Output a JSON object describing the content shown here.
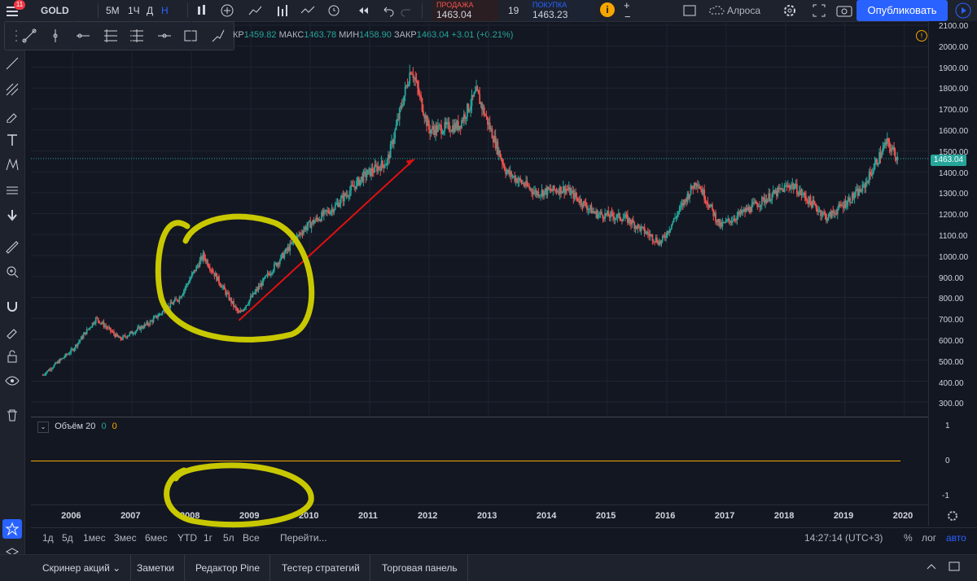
{
  "topbar": {
    "notif_count": "11",
    "symbol": "GOLD",
    "intervals": [
      "5М",
      "1Ч",
      "Д",
      "Н"
    ],
    "sell_label": "ПРОДАЖА",
    "sell_price": "1463.04",
    "spread": "19",
    "buy_label": "ПОКУПКА",
    "buy_price": "1463.23",
    "watchlist": "Алроса",
    "publish_label": "Опубликовать"
  },
  "ohlc": {
    "open_label": "КР",
    "open": "1459.82",
    "high_label": "МАКС",
    "high": "1463.78",
    "low_label": "МИН",
    "low": "1458.90",
    "close_label": "ЗАКР",
    "close": "1463.04",
    "change": "+3.01 (+0.21%)"
  },
  "price_axis": {
    "ticks": [
      "2100.00",
      "2000.00",
      "1900.00",
      "1800.00",
      "1700.00",
      "1600.00",
      "1500.00",
      "1400.00",
      "1300.00",
      "1200.00",
      "1100.00",
      "1000.00",
      "900.00",
      "800.00",
      "700.00",
      "600.00",
      "500.00",
      "400.00",
      "300.00"
    ],
    "current": "1463.04",
    "vol_ticks": [
      "1",
      "0",
      "-1"
    ]
  },
  "volume": {
    "label": "Объём 20",
    "v1": "0",
    "v2": "0"
  },
  "time_axis": {
    "years": [
      "2006",
      "2007",
      "2008",
      "2009",
      "2010",
      "2011",
      "2012",
      "2013",
      "2014",
      "2015",
      "2016",
      "2017",
      "2018",
      "2019",
      "2020"
    ]
  },
  "bottom_bar": {
    "ranges": [
      "1д",
      "5д",
      "1мес",
      "3мес",
      "6мес",
      "YTD",
      "1г",
      "5л",
      "Все"
    ],
    "goto": "Перейти...",
    "clock": "14:27:14 (UTC+3)",
    "percent": "%",
    "log": "лог",
    "auto": "авто"
  },
  "footer": {
    "tabs": [
      "Скринер акций",
      "Заметки",
      "Редактор Pine",
      "Тестер стратегий",
      "Торговая панель"
    ]
  },
  "colors": {
    "up": "#26a69a",
    "down": "#ef5350",
    "background": "#131722",
    "annotation_yellow": "#c8c800",
    "arrow_red": "#e01010"
  },
  "chart_data": {
    "type": "candlestick",
    "x": [
      2005.5,
      2006.0,
      2006.4,
      2006.8,
      2007.3,
      2007.8,
      2008.2,
      2008.8,
      2009.4,
      2009.9,
      2010.4,
      2010.9,
      2011.3,
      2011.7,
      2012.0,
      2012.5,
      2012.8,
      2013.3,
      2013.8,
      2014.3,
      2014.8,
      2015.3,
      2015.9,
      2016.5,
      2016.9,
      2017.6,
      2018.1,
      2018.7,
      2019.3,
      2019.7,
      2019.9
    ],
    "y": [
      430,
      550,
      700,
      600,
      680,
      800,
      1000,
      720,
      950,
      1130,
      1230,
      1380,
      1450,
      1900,
      1600,
      1620,
      1780,
      1400,
      1300,
      1320,
      1200,
      1180,
      1060,
      1360,
      1140,
      1260,
      1340,
      1180,
      1320,
      1540,
      1463
    ],
    "ylim": [
      250,
      2100
    ],
    "xlim": [
      2005.3,
      2020.4
    ],
    "current_price": 1463.04
  }
}
